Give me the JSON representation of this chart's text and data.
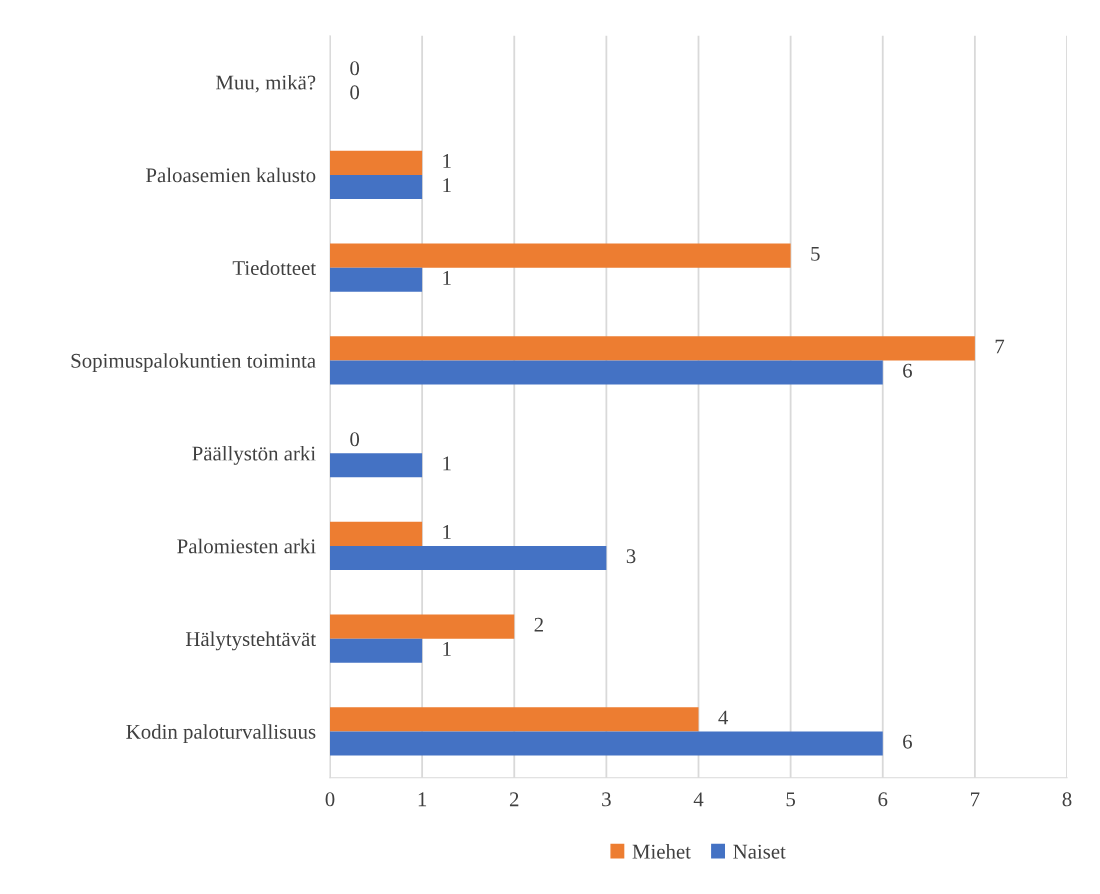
{
  "chart_data": {
    "type": "bar",
    "orientation": "horizontal",
    "categories": [
      "Muu, mikä?",
      "Paloasemien kalusto",
      "Tiedotteet",
      "Sopimuspalokuntien toiminta",
      "Päällystön arki",
      "Palomiesten arki",
      "Hälytystehtävät",
      "Kodin paloturvallisuus"
    ],
    "series": [
      {
        "name": "Miehet",
        "color": "#ed7d31",
        "values": [
          0,
          1,
          5,
          7,
          0,
          1,
          2,
          4
        ]
      },
      {
        "name": "Naiset",
        "color": "#4472c4",
        "values": [
          0,
          1,
          1,
          6,
          1,
          3,
          1,
          6
        ]
      }
    ],
    "xlim": [
      0,
      8
    ],
    "xticks": [
      0,
      1,
      2,
      3,
      4,
      5,
      6,
      7,
      8
    ],
    "grid": "x",
    "legend": "bottom",
    "data_labels": true
  }
}
